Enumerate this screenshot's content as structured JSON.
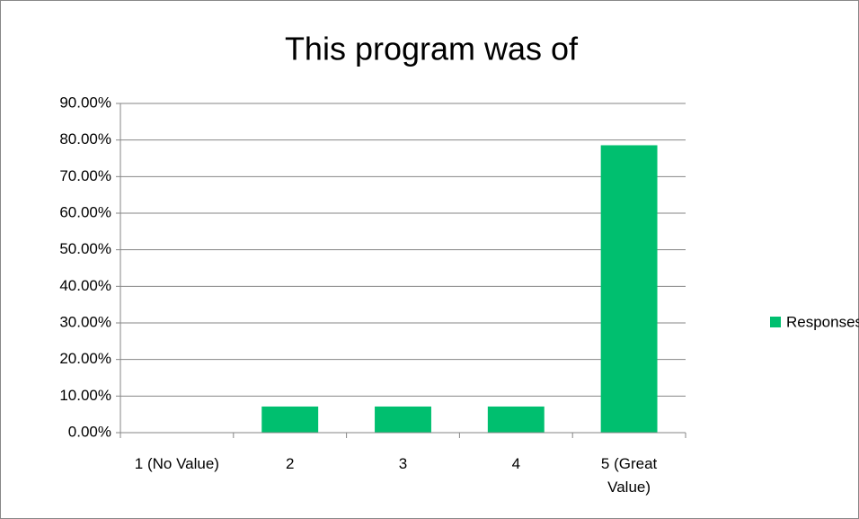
{
  "chart_data": {
    "type": "bar",
    "title": "This program was of",
    "categories": [
      "1 (No Value)",
      "2",
      "3",
      "4",
      "5 (Great Value)"
    ],
    "series": [
      {
        "name": "Responses",
        "color": "#00bf6f",
        "values": [
          0,
          7.14,
          7.14,
          7.14,
          78.57
        ]
      }
    ],
    "ylim": [
      0,
      90
    ],
    "yticks": [
      {
        "value": 0,
        "label": "0.00%"
      },
      {
        "value": 10,
        "label": "10.00%"
      },
      {
        "value": 20,
        "label": "20.00%"
      },
      {
        "value": 30,
        "label": "30.00%"
      },
      {
        "value": 40,
        "label": "40.00%"
      },
      {
        "value": 50,
        "label": "50.00%"
      },
      {
        "value": 60,
        "label": "60.00%"
      },
      {
        "value": 70,
        "label": "70.00%"
      },
      {
        "value": 80,
        "label": "80.00%"
      },
      {
        "value": 90,
        "label": "90.00%"
      }
    ],
    "grid": true,
    "legend": "right"
  }
}
